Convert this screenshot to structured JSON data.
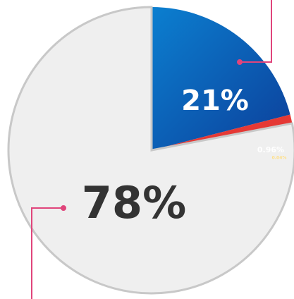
{
  "chart_data": {
    "type": "pie",
    "categories": [
      null,
      null,
      null,
      null
    ],
    "values": [
      78,
      21,
      0.96,
      0.04
    ],
    "value_labels": [
      "78%",
      "21%",
      "0.96%",
      "0.04%"
    ],
    "colors": [
      "#efefef",
      "#1565c0",
      "#e53935",
      "#f9a825"
    ]
  }
}
